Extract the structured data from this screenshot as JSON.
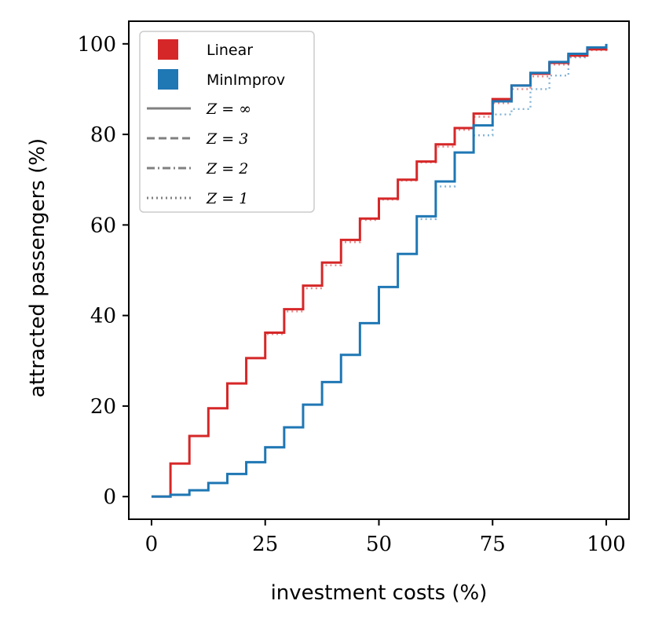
{
  "chart_data": {
    "type": "line",
    "step": true,
    "xlabel": "investment costs (%)",
    "ylabel": "attracted passengers (%)",
    "xlim": [
      -5,
      105
    ],
    "ylim": [
      -5,
      105
    ],
    "xticks": [
      0,
      25,
      50,
      75,
      100
    ],
    "yticks": [
      0,
      20,
      40,
      60,
      80,
      100
    ],
    "grid": false,
    "legend_position": "top-left",
    "colors": {
      "Linear": "#d62728",
      "MinImprov": "#1f77b4",
      "Z-legend": "#808080"
    },
    "legend": {
      "methods": [
        "Linear",
        "MinImprov"
      ],
      "z_styles": [
        {
          "label": "Z = ∞",
          "dash": "solid"
        },
        {
          "label": "Z = 3",
          "dash": "dashed"
        },
        {
          "label": "Z = 2",
          "dash": "dashdot"
        },
        {
          "label": "Z = 1",
          "dash": "dotted"
        }
      ]
    },
    "series": [
      {
        "name": "Linear",
        "z": "∞",
        "x": [
          0,
          4.17,
          8.33,
          12.5,
          16.67,
          20.83,
          25,
          29.17,
          33.33,
          37.5,
          41.67,
          45.83,
          50,
          54.17,
          58.33,
          62.5,
          66.67,
          70.83,
          75,
          79.17,
          83.33,
          87.5,
          91.67,
          95.83,
          100
        ],
        "y": [
          0,
          7.3,
          13.4,
          19.5,
          25,
          30.6,
          36.2,
          41.4,
          46.6,
          51.7,
          56.7,
          61.4,
          65.8,
          70,
          74,
          77.8,
          81.4,
          84.6,
          87.8,
          90.8,
          93.4,
          95.8,
          97.4,
          98.8,
          99
        ]
      },
      {
        "name": "Linear",
        "z": "1",
        "x": [
          0,
          4.17,
          8.33,
          12.5,
          16.67,
          20.83,
          25,
          29.17,
          33.33,
          37.5,
          41.67,
          45.83,
          50,
          54.17,
          58.33,
          62.5,
          66.67,
          70.83,
          75,
          79.17,
          83.33,
          87.5,
          91.67,
          95.83,
          100
        ],
        "y": [
          0,
          7.3,
          13.4,
          19.5,
          25,
          30.6,
          35.9,
          40.9,
          46,
          51.1,
          56.2,
          61.1,
          65.6,
          69.8,
          73.8,
          77.3,
          81,
          83.9,
          86.9,
          90,
          92.8,
          95.4,
          97.2,
          98.6,
          99
        ]
      },
      {
        "name": "MinImprov",
        "z": "∞",
        "x": [
          0,
          4.17,
          8.33,
          12.5,
          16.67,
          20.83,
          25,
          29.17,
          33.33,
          37.5,
          41.67,
          45.83,
          50,
          54.17,
          58.33,
          62.5,
          66.67,
          70.83,
          75,
          79.17,
          83.33,
          87.5,
          91.67,
          95.83,
          100
        ],
        "y": [
          0,
          0.4,
          1.4,
          3,
          5,
          7.6,
          10.9,
          15.3,
          20.3,
          25.3,
          31.3,
          38.3,
          46.3,
          53.6,
          61.9,
          69.6,
          76,
          82,
          87.3,
          90.8,
          93.6,
          96,
          97.8,
          99.2,
          100
        ]
      },
      {
        "name": "MinImprov",
        "z": "1",
        "x": [
          0,
          4.17,
          8.33,
          12.5,
          16.67,
          20.83,
          25,
          29.17,
          33.33,
          37.5,
          41.67,
          45.83,
          50,
          54.17,
          58.33,
          62.5,
          66.67,
          70.83,
          75,
          79.17,
          83.33,
          87.5,
          91.67,
          95.83,
          100
        ],
        "y": [
          0,
          0.4,
          1.4,
          3,
          5,
          7.6,
          10.9,
          15.3,
          20.3,
          25.3,
          31.3,
          38.3,
          46.3,
          53.6,
          61.3,
          68.5,
          76,
          79.8,
          84.4,
          85.6,
          90,
          93,
          97,
          99,
          100
        ]
      }
    ]
  }
}
